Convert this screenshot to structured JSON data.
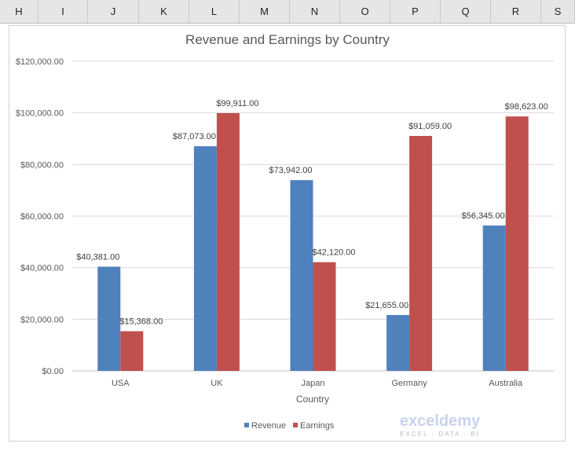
{
  "spreadsheet": {
    "columns": [
      "H",
      "I",
      "J",
      "K",
      "L",
      "M",
      "N",
      "O",
      "P",
      "Q",
      "R",
      "S"
    ]
  },
  "watermark": {
    "name": "exceldemy",
    "tagline": "EXCEL · DATA · BI"
  },
  "chart_data": {
    "type": "bar",
    "title": "Revenue and Earnings by Country",
    "xlabel": "Country",
    "ylabel": "",
    "categories": [
      "USA",
      "UK",
      "Japan",
      "Germany",
      "Australia"
    ],
    "series": [
      {
        "name": "Revenue",
        "color": "#4f81bd",
        "values": [
          40381,
          87073,
          73942,
          21655,
          56345
        ],
        "labels": [
          "$40,381.00",
          "$87,073.00",
          "$73,942.00",
          "$21,655.00",
          "$56,345.00"
        ]
      },
      {
        "name": "Earnings",
        "color": "#c0504d",
        "values": [
          15368,
          99911,
          42120,
          91059,
          98623
        ],
        "labels": [
          "$15,368.00",
          "$99,911.00",
          "$42,120.00",
          "$91,059.00",
          "$98,623.00"
        ]
      }
    ],
    "ylim": [
      0,
      120000
    ],
    "yticks": [
      "$0.00",
      "$20,000.00",
      "$40,000.00",
      "$60,000.00",
      "$80,000.00",
      "$100,000.00",
      "$120,000.00"
    ],
    "grid": true,
    "legend": "bottom"
  }
}
